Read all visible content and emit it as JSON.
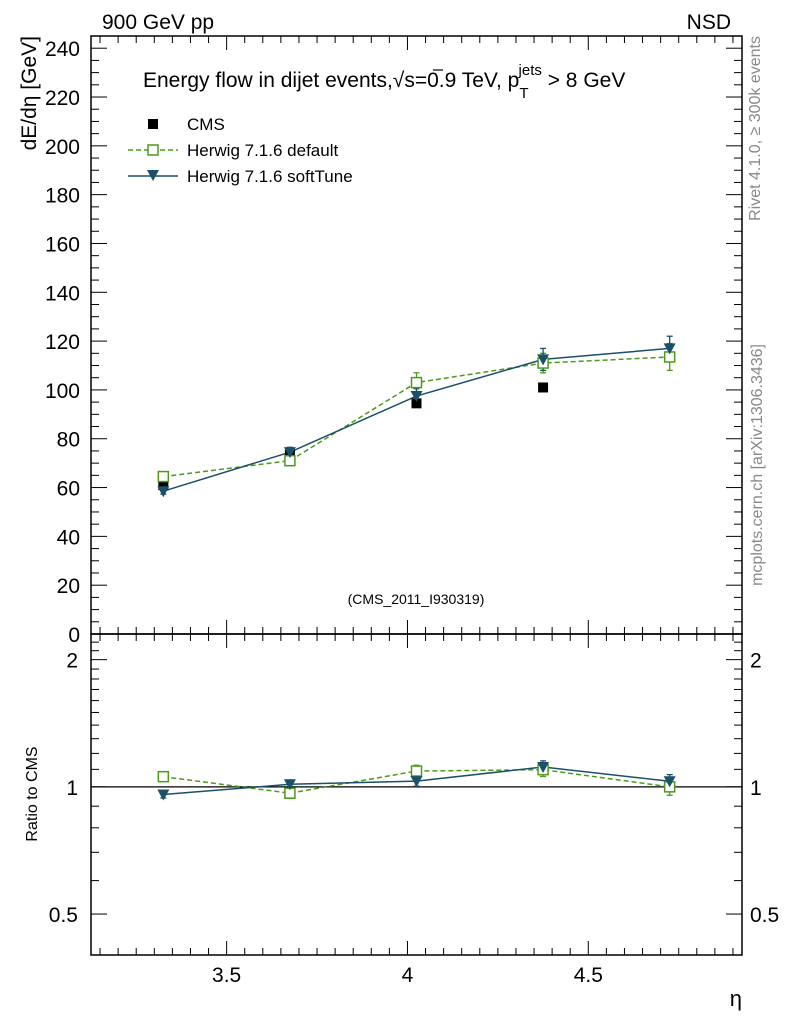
{
  "header": {
    "left": "900 GeV pp",
    "right": "NSD"
  },
  "side_labels": {
    "rivet": "Rivet 4.1.0, ≥ 300k events",
    "mcplots": "mcplots.cern.ch [arXiv:1306.3436]"
  },
  "analysis_id": "(CMS_2011_I930319)",
  "colors": {
    "cms": "#000000",
    "herwig_default": "#4d9a1a",
    "herwig_softtune": "#1a5068",
    "ref_line": "#000000"
  },
  "chart_data": [
    {
      "type": "scatter",
      "panel": "main",
      "title_parts": {
        "main": "Energy flow in dijet events,",
        "sqrt": "√",
        "s": "s=0.9 TeV, p",
        "sub": "T",
        "sup": "jets",
        "tail": " > 8 GeV"
      },
      "ylabel": "dE/dη [GeV]",
      "xlabel": "η",
      "xlim": [
        3.125,
        4.925
      ],
      "ylim": [
        0,
        245
      ],
      "yticks": [
        0,
        20,
        40,
        60,
        80,
        100,
        120,
        140,
        160,
        180,
        200,
        220,
        240
      ],
      "ytick_labels": [
        "0",
        "20",
        "40",
        "60",
        "80",
        "100",
        "120",
        "140",
        "160",
        "180",
        "200",
        "220",
        "240"
      ],
      "x": [
        3.325,
        3.675,
        4.025,
        4.375,
        4.725
      ],
      "series": [
        {
          "name": "CMS",
          "legend": "CMS",
          "values": [
            61,
            73.5,
            94.5,
            101,
            113.5
          ],
          "errors": [
            0,
            0,
            0,
            0,
            0
          ],
          "marker": "filled-square",
          "line": "none"
        },
        {
          "name": "Herwig 7.1.6 default",
          "legend": "Herwig 7.1.6 default",
          "values": [
            64.5,
            71,
            103,
            111,
            113.5
          ],
          "errors": [
            1.5,
            2,
            4,
            4,
            5.5
          ],
          "marker": "open-square",
          "line": "dashed"
        },
        {
          "name": "Herwig 7.1.6 softTune",
          "legend": "Herwig 7.1.6 softTune",
          "values": [
            58.5,
            74.5,
            97.5,
            112.5,
            117
          ],
          "errors": [
            1.2,
            2,
            3,
            4.5,
            5
          ],
          "marker": "triangle-down",
          "line": "solid"
        }
      ]
    },
    {
      "type": "scatter",
      "panel": "ratio",
      "ylabel": "Ratio to CMS",
      "xlabel": "η",
      "xlim": [
        3.125,
        4.925
      ],
      "ylim": [
        0.4,
        2.3
      ],
      "ylog": true,
      "yticks": [
        0.5,
        1,
        2
      ],
      "ytick_labels": [
        "0.5",
        "1",
        "2"
      ],
      "xticks": [
        3.5,
        4,
        4.5
      ],
      "xtick_labels": [
        "3.5",
        "4",
        "4.5"
      ],
      "x": [
        3.325,
        3.675,
        4.025,
        4.375,
        4.725
      ],
      "reference": 1,
      "series": [
        {
          "name": "Herwig 7.1.6 default",
          "values": [
            1.057,
            0.966,
            1.09,
            1.098,
            1.0
          ],
          "errors": [
            0.02,
            0.027,
            0.035,
            0.04,
            0.045
          ]
        },
        {
          "name": "Herwig 7.1.6 softTune",
          "values": [
            0.959,
            1.014,
            1.032,
            1.114,
            1.031
          ],
          "errors": [
            0.018,
            0.024,
            0.028,
            0.038,
            0.038
          ]
        }
      ]
    }
  ]
}
